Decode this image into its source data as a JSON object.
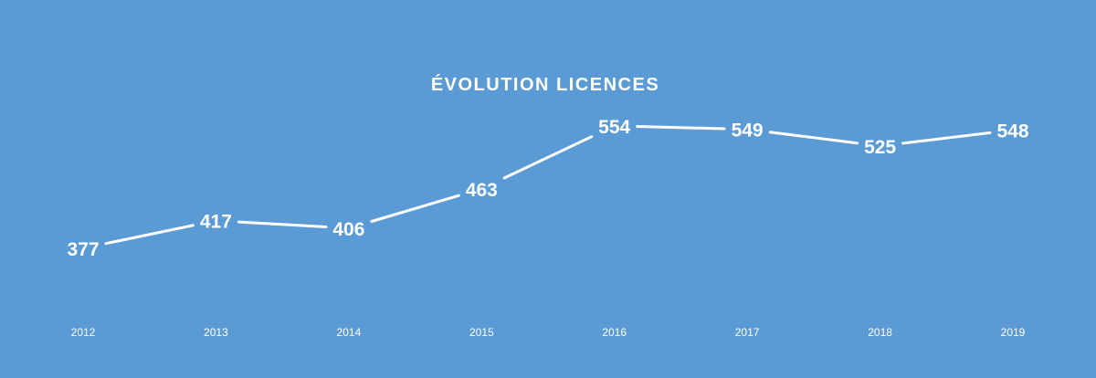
{
  "colors": {
    "background": "#5b9bd5",
    "line": "#ffffff",
    "text": "#ffffff"
  },
  "chart_data": {
    "type": "line",
    "title": "ÉVOLUTION LICENCES",
    "categories": [
      "2012",
      "2013",
      "2014",
      "2015",
      "2016",
      "2017",
      "2018",
      "2019"
    ],
    "series": [
      {
        "values": [
          377,
          417,
          406,
          463,
          554,
          549,
          525,
          548
        ]
      }
    ],
    "data_labels": [
      "377",
      "417",
      "406",
      "463",
      "554",
      "549",
      "525",
      "548"
    ],
    "ylim": [
      0,
      600
    ],
    "grid": false,
    "legend": "none"
  }
}
